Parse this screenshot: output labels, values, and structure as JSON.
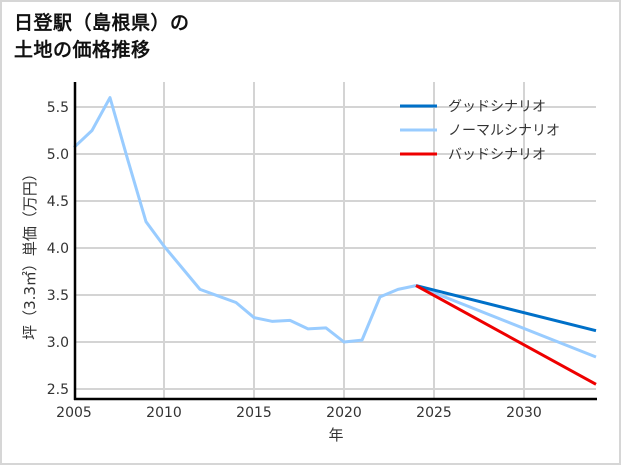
{
  "title_lines": [
    "日登駅（島根県）の",
    "土地の価格推移"
  ],
  "chart_data": {
    "type": "line",
    "title": "日登駅（島根県）の土地の価格推移",
    "xlabel": "年",
    "ylabel": "坪（3.3㎡）単価（万円）",
    "xlim": [
      2005,
      2034
    ],
    "ylim": [
      2.39,
      5.77
    ],
    "x_ticks": [
      2005,
      2010,
      2015,
      2020,
      2025,
      2030
    ],
    "y_ticks": [
      2.5,
      3.0,
      3.5,
      4.0,
      4.5,
      5.0,
      5.5
    ],
    "grid": true,
    "legend_position": "upper right",
    "series": [
      {
        "name": "ノーマルシナリオ",
        "color": "#99ccff",
        "x": [
          2005,
          2006,
          2007,
          2008,
          2009,
          2010,
          2011,
          2012,
          2013,
          2014,
          2015,
          2016,
          2017,
          2018,
          2019,
          2020,
          2021,
          2022,
          2023,
          2024
        ],
        "values": [
          5.07,
          5.25,
          5.6,
          4.93,
          4.28,
          4.02,
          3.79,
          3.56,
          3.49,
          3.42,
          3.26,
          3.22,
          3.23,
          3.14,
          3.15,
          3.0,
          3.02,
          3.48,
          3.56,
          3.6
        ]
      },
      {
        "name": "グッドシナリオ",
        "color": "#0070c8",
        "x": [
          2024,
          2034
        ],
        "values": [
          3.6,
          3.12
        ]
      },
      {
        "name": "ノーマルシナリオ",
        "color": "#99ccff",
        "x": [
          2024,
          2034
        ],
        "values": [
          3.6,
          2.84
        ]
      },
      {
        "name": "バッドシナリオ",
        "color": "#ee0000",
        "x": [
          2024,
          2034
        ],
        "values": [
          3.6,
          2.55
        ]
      }
    ],
    "legend": [
      {
        "label": "グッドシナリオ",
        "color": "#0070c8"
      },
      {
        "label": "ノーマルシナリオ",
        "color": "#99ccff"
      },
      {
        "label": "バッドシナリオ",
        "color": "#ee0000"
      }
    ]
  }
}
